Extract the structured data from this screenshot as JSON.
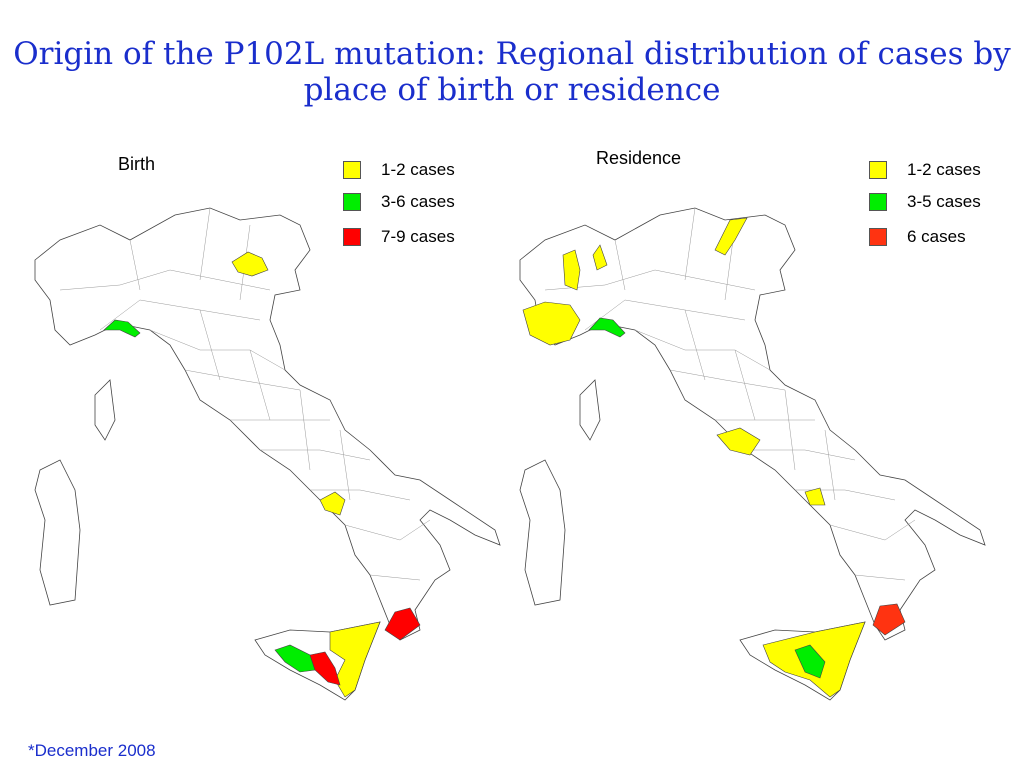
{
  "title": "Origin of the P102L mutation: Regional distribution of cases by place of birth or residence",
  "footnote": "*December 2008",
  "maps": [
    {
      "label": "Birth",
      "legend": [
        {
          "label": "1-2 cases",
          "color": "#ffff00"
        },
        {
          "label": "3-6 cases",
          "color": "#00ee00"
        },
        {
          "label": "7-9 cases",
          "color": "#ff0000"
        }
      ]
    },
    {
      "label": "Residence",
      "legend": [
        {
          "label": "1-2 cases",
          "color": "#ffff00"
        },
        {
          "label": "3-5 cases",
          "color": "#00ee00"
        },
        {
          "label": "6 cases",
          "color": "#ff3311"
        }
      ]
    }
  ]
}
